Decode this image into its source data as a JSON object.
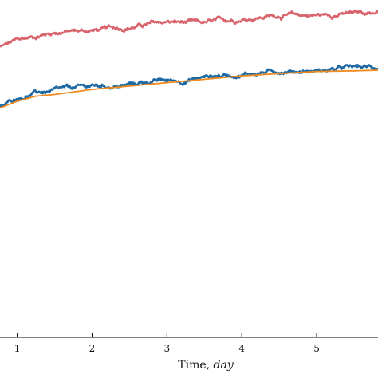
{
  "chart_data": {
    "type": "line",
    "title": "",
    "xlabel_prefix": "Time, ",
    "xlabel_unit": "day",
    "ylabel": "",
    "xlim": [
      0.77,
      5.82
    ],
    "ylim": [
      0,
      1
    ],
    "xticks": [
      1,
      2,
      3,
      4,
      5
    ],
    "xtick_labels": [
      "1",
      "2",
      "3",
      "4",
      "5"
    ],
    "grid": false,
    "series": [
      {
        "color": "#d9636b",
        "noisy": true,
        "x": [
          0.77,
          1.0,
          1.5,
          2.0,
          2.5,
          3.0,
          3.5,
          4.0,
          4.5,
          5.0,
          5.5,
          5.82
        ],
        "y": [
          0.86,
          0.88,
          0.905,
          0.91,
          0.92,
          0.935,
          0.93,
          0.945,
          0.955,
          0.955,
          0.96,
          0.965
        ]
      },
      {
        "color": "#1f6aa5",
        "noisy": true,
        "x": [
          0.77,
          1.0,
          1.25,
          1.5,
          2.0,
          2.4,
          2.8,
          3.2,
          3.6,
          4.0,
          4.5,
          5.0,
          5.5,
          5.82
        ],
        "y": [
          0.68,
          0.71,
          0.725,
          0.73,
          0.745,
          0.745,
          0.76,
          0.76,
          0.775,
          0.78,
          0.79,
          0.79,
          0.8,
          0.8
        ]
      },
      {
        "color": "#f08a1c",
        "noisy": false,
        "x": [
          0.77,
          1.0,
          1.25,
          1.5,
          2.0,
          2.5,
          3.0,
          3.5,
          4.0,
          4.5,
          5.0,
          5.5,
          5.82
        ],
        "y": [
          0.68,
          0.7,
          0.715,
          0.72,
          0.735,
          0.745,
          0.755,
          0.765,
          0.775,
          0.782,
          0.788,
          0.79,
          0.792
        ]
      }
    ]
  }
}
